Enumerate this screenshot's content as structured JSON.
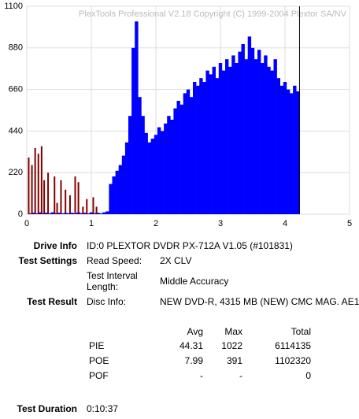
{
  "chart_data": {
    "type": "bar",
    "watermark": "PlexTools Professional V2.18 Copyright (C) 1999-2004 Plextor SA/NV",
    "xlim": [
      0,
      5
    ],
    "xticks": [
      0,
      1,
      2,
      3,
      4,
      5
    ],
    "ylim": [
      0,
      1100
    ],
    "yticks": [
      0,
      220,
      440,
      660,
      880,
      1100
    ],
    "grid": true,
    "series": [
      {
        "name": "PIE",
        "color": "#0000ff",
        "x": [
          0.05,
          0.1,
          0.15,
          0.2,
          0.25,
          0.3,
          0.35,
          0.4,
          0.45,
          0.5,
          0.55,
          0.6,
          0.65,
          0.7,
          0.75,
          0.8,
          0.85,
          0.9,
          0.95,
          1.0,
          1.05,
          1.1,
          1.15,
          1.2,
          1.25,
          1.3,
          1.35,
          1.4,
          1.45,
          1.5,
          1.55,
          1.6,
          1.65,
          1.7,
          1.75,
          1.8,
          1.85,
          1.9,
          1.95,
          2.0,
          2.05,
          2.1,
          2.15,
          2.2,
          2.25,
          2.3,
          2.35,
          2.4,
          2.45,
          2.5,
          2.55,
          2.6,
          2.65,
          2.7,
          2.75,
          2.8,
          2.85,
          2.9,
          2.95,
          3.0,
          3.05,
          3.1,
          3.15,
          3.2,
          3.25,
          3.3,
          3.35,
          3.4,
          3.45,
          3.5,
          3.55,
          3.6,
          3.65,
          3.7,
          3.75,
          3.8,
          3.85,
          3.9,
          3.95,
          4.0,
          4.05,
          4.1,
          4.15,
          4.2
        ],
        "values": [
          5,
          8,
          5,
          10,
          6,
          8,
          5,
          10,
          6,
          8,
          5,
          7,
          6,
          8,
          5,
          10,
          6,
          8,
          5,
          10,
          6,
          8,
          5,
          10,
          15,
          160,
          200,
          230,
          260,
          310,
          380,
          520,
          880,
          1020,
          620,
          520,
          430,
          380,
          400,
          420,
          460,
          440,
          480,
          520,
          500,
          560,
          600,
          580,
          640,
          660,
          620,
          700,
          680,
          720,
          700,
          760,
          740,
          780,
          720,
          800,
          760,
          820,
          780,
          840,
          800,
          860,
          900,
          820,
          940,
          880,
          820,
          870,
          800,
          840,
          780,
          760,
          820,
          720,
          680,
          700,
          660,
          640,
          680,
          650
        ]
      },
      {
        "name": "POE",
        "color": "#800000",
        "x": [
          0.03,
          0.08,
          0.13,
          0.18,
          0.23,
          0.27,
          0.33,
          0.43,
          0.47,
          0.53,
          0.6,
          0.67,
          0.75,
          0.8,
          0.87,
          0.93,
          1.03,
          1.08
        ],
        "values": [
          300,
          260,
          350,
          320,
          360,
          180,
          220,
          200,
          60,
          180,
          130,
          100,
          200,
          170,
          40,
          80,
          90,
          40
        ]
      }
    ]
  },
  "info": {
    "drive_info": {
      "label": "Drive Info",
      "value": "ID:0 PLEXTOR DVDR PX-712A V1.05 (#101831)"
    },
    "test_settings": {
      "label": "Test Settings",
      "read_speed_label": "Read Speed:",
      "read_speed": "2X CLV",
      "interval_label": "Test Interval Length:",
      "interval": "Middle Accuracy"
    },
    "test_result": {
      "label": "Test Result",
      "disc_info_label": "Disc Info:",
      "disc_info": "NEW DVD-R, 4315 MB (NEW) CMC MAG. AE1"
    },
    "table": {
      "header": [
        "Avg",
        "Max",
        "Total"
      ],
      "rows": [
        [
          "PIE",
          44.31,
          1022,
          6114135
        ],
        [
          "POE",
          7.99,
          391,
          1102320
        ],
        [
          "POF",
          "-",
          "-",
          0
        ]
      ]
    },
    "test_duration": {
      "label": "Test Duration",
      "value": "0:10:37"
    }
  }
}
